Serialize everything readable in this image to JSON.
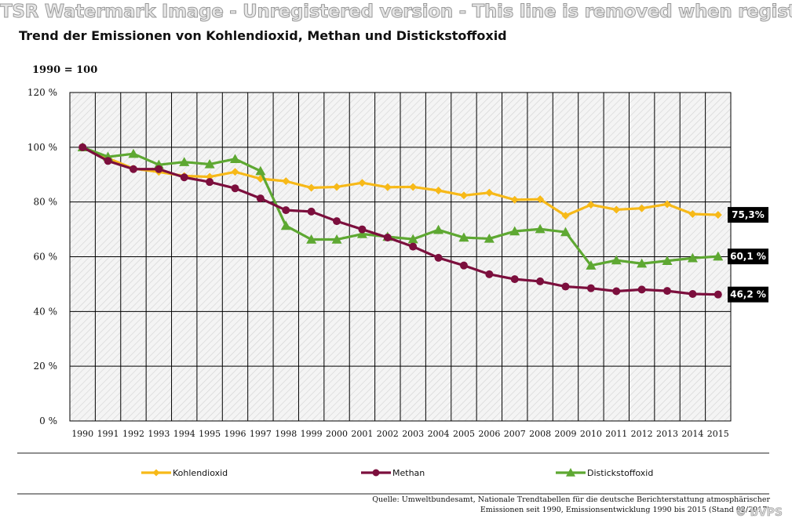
{
  "watermark": "TSR Watermark Image - Unregistered version - This line is removed when registered",
  "logo": "© bVPS",
  "source": {
    "line1": "Quelle: Umweltbundesamt, Nationale Trendtabellen für die deutsche Berichterstattung atmosphärischer",
    "line2": "Emissionen seit 1990, Emissionsentwicklung 1990 bis 2015 (Stand 02/2017)"
  },
  "chart_data": {
    "type": "line",
    "title": "Trend der Emissionen von Kohlendioxid, Methan und Distickstoffoxid",
    "index_label": "1990 = 100",
    "xlabel": "",
    "ylabel": "",
    "ylim": [
      0,
      120
    ],
    "yticks": [
      "0 %",
      "20 %",
      "40 %",
      "60 %",
      "80 %",
      "100 %",
      "120 %"
    ],
    "grid": true,
    "legend_position": "bottom",
    "x": [
      1990,
      1991,
      1992,
      1993,
      1994,
      1995,
      1996,
      1997,
      1998,
      1999,
      2000,
      2001,
      2002,
      2003,
      2004,
      2005,
      2006,
      2007,
      2008,
      2009,
      2010,
      2011,
      2012,
      2013,
      2014,
      2015
    ],
    "series": [
      {
        "name": "Kohlendioxid",
        "color": "#f7b918",
        "marker": "diamond",
        "values": [
          100,
          96,
          92.2,
          91,
          89.5,
          89.2,
          91,
          88.5,
          87.6,
          85.2,
          85.5,
          87,
          85.4,
          85.5,
          84.2,
          82.4,
          83.4,
          80.8,
          81,
          75,
          79,
          77.2,
          77.7,
          79.2,
          75.6,
          75.3
        ],
        "end_label": "75,3%"
      },
      {
        "name": "Methan",
        "color": "#7c0f3d",
        "marker": "circle",
        "values": [
          100,
          95,
          92,
          92,
          89,
          87.3,
          85,
          81.3,
          77,
          76.5,
          73,
          70,
          67,
          63.7,
          59.6,
          56.8,
          53.6,
          51.8,
          51,
          49.1,
          48.5,
          47.4,
          48,
          47.5,
          46.4,
          46.2
        ],
        "end_label": "46,2 %"
      },
      {
        "name": "Distickstoffoxid",
        "color": "#5ea832",
        "marker": "triangle",
        "values": [
          100,
          96.5,
          97.6,
          93.6,
          94.6,
          93.8,
          95.7,
          91.3,
          71.3,
          66.3,
          66.3,
          68.3,
          67.3,
          66.4,
          69.8,
          67,
          66.6,
          69.3,
          70.1,
          69,
          56.8,
          58.7,
          57.5,
          58.5,
          59.5,
          60.1
        ],
        "end_label": "60,1 %"
      }
    ]
  }
}
